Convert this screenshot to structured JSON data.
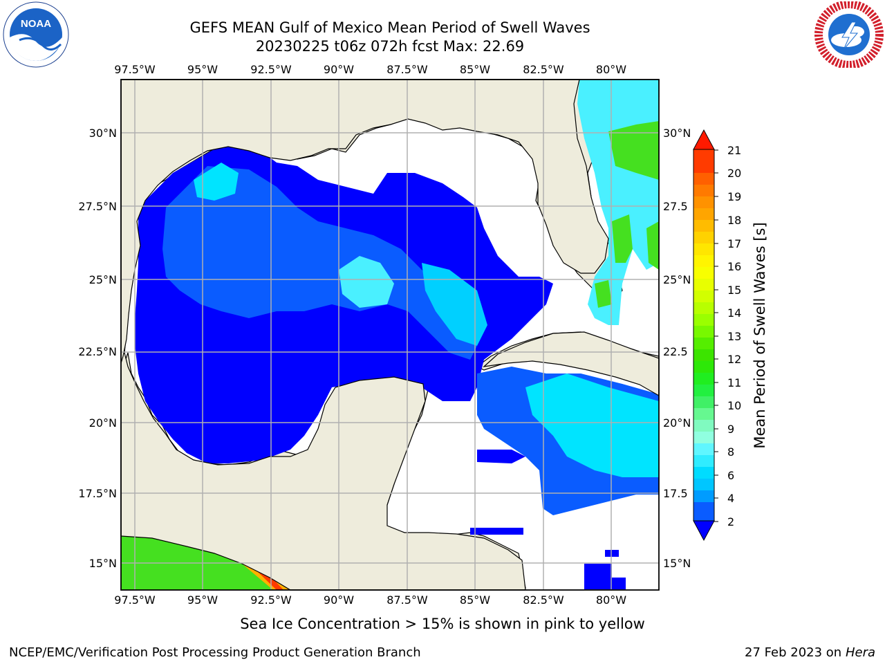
{
  "header": {
    "title": "GEFS MEAN Gulf of Mexico Mean Period of Swell Waves",
    "subtitle": "20230225 t06z 072h fcst   Max: 22.69"
  },
  "logos": {
    "left": "noaa-logo",
    "right": "national-weather-service-logo"
  },
  "map": {
    "lon_labels": [
      "97.5°W",
      "95°W",
      "92.5°W",
      "90°W",
      "87.5°W",
      "85°W",
      "82.5°W",
      "80°W"
    ],
    "lat_labels_left": [
      "30°N",
      "27.5°N",
      "25°N",
      "22.5°N",
      "20°N",
      "17.5°N",
      "15°N"
    ],
    "lat_labels_right": [
      "30°N",
      "27.5",
      "25°N",
      "22.5",
      "20°N",
      "17.5",
      "15°N"
    ],
    "land_color": "#eeecdc",
    "grid_color": "#b0b0b0"
  },
  "colorbar": {
    "label": "Mean Period of Swell Waves [s]",
    "ticks": [
      "21",
      "20",
      "19",
      "18",
      "17",
      "16",
      "15",
      "14",
      "13",
      "12",
      "11",
      "10",
      "9",
      "8",
      "6",
      "4",
      "2"
    ],
    "colors": [
      "#ff3b00",
      "#ff6000",
      "#ff8a00",
      "#ffb100",
      "#ffd200",
      "#fff000",
      "#f0ff00",
      "#c8ff00",
      "#8cff00",
      "#45f000",
      "#1ee820",
      "#20f040",
      "#66f890",
      "#90ffdd",
      "#4af0ff",
      "#00d0ff",
      "#0a5cff",
      "#0000ff"
    ]
  },
  "footer": {
    "note": "Sea Ice Concentration > 15% is shown in pink to yellow",
    "credit": "NCEP/EMC/Verification Post Processing Product Generation Branch",
    "date": "27 Feb 2023 on",
    "host": "Hera"
  }
}
